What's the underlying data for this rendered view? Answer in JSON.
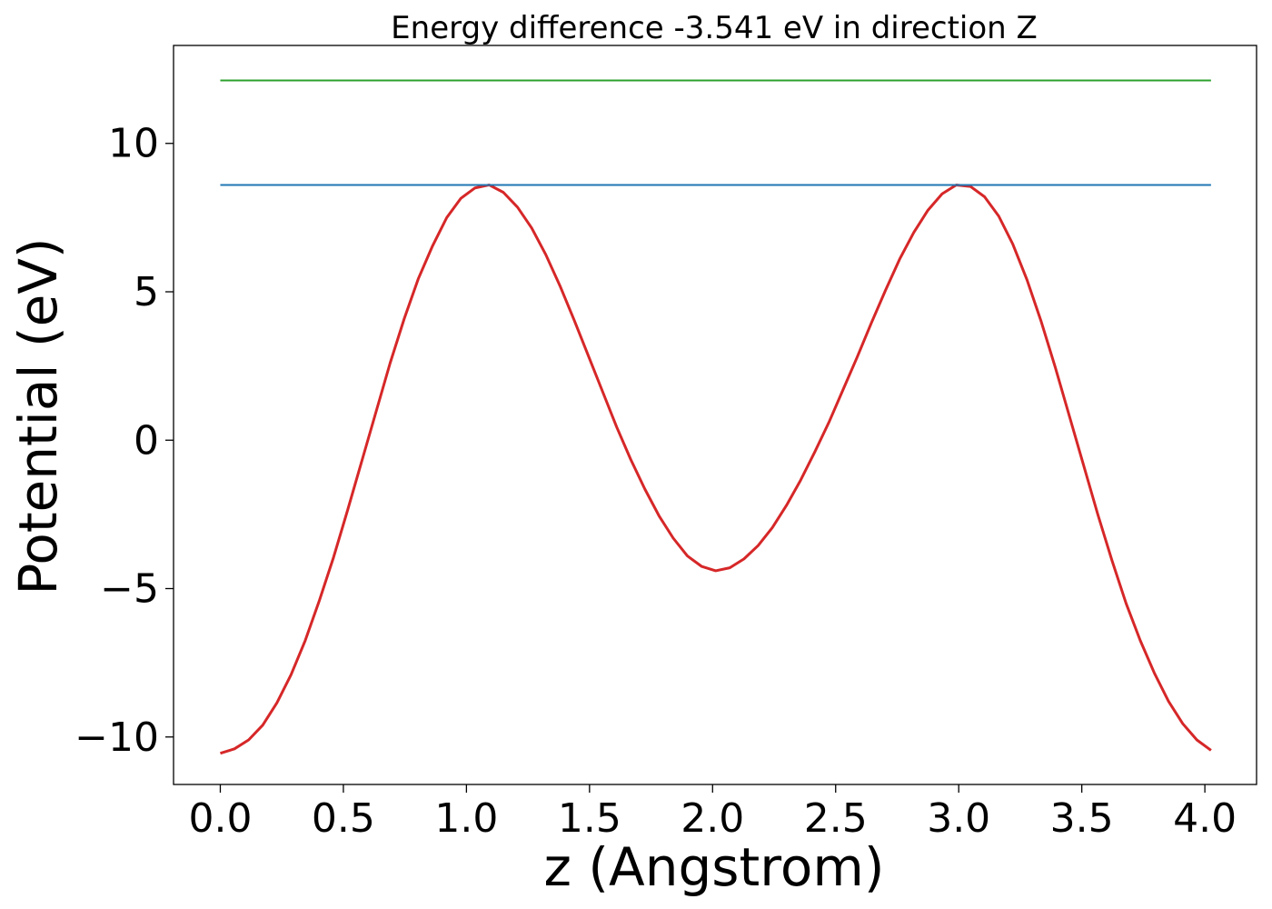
{
  "chart_data": {
    "type": "line",
    "title": "Energy difference -3.541 eV in direction Z",
    "xlabel": "z (Angstrom)",
    "ylabel": "Potential (eV)",
    "xlim": [
      -0.19,
      4.21
    ],
    "ylim": [
      -11.6,
      13.3
    ],
    "xticks": [
      0.0,
      0.5,
      1.0,
      1.5,
      2.0,
      2.5,
      3.0,
      3.5,
      4.0
    ],
    "xtick_labels": [
      "0.0",
      "0.5",
      "1.0",
      "1.5",
      "2.0",
      "2.5",
      "3.0",
      "3.5",
      "4.0"
    ],
    "yticks": [
      -10,
      -5,
      0,
      5,
      10
    ],
    "ytick_labels": [
      "−10",
      "−5",
      "0",
      "5",
      "10"
    ],
    "grid": false,
    "series": [
      {
        "color": "#d62728",
        "x": [
          0.0,
          0.0575,
          0.115,
          0.1725,
          0.23,
          0.2875,
          0.345,
          0.4025,
          0.46,
          0.5175,
          0.575,
          0.6325,
          0.69,
          0.7475,
          0.805,
          0.8625,
          0.92,
          0.9775,
          1.035,
          1.0925,
          1.15,
          1.2075,
          1.265,
          1.3225,
          1.38,
          1.4375,
          1.495,
          1.5525,
          1.61,
          1.6675,
          1.725,
          1.7825,
          1.84,
          1.8975,
          1.955,
          2.0125,
          2.07,
          2.1275,
          2.185,
          2.2425,
          2.3,
          2.3575,
          2.415,
          2.4725,
          2.53,
          2.5875,
          2.645,
          2.7025,
          2.76,
          2.8175,
          2.875,
          2.9325,
          2.99,
          3.0475,
          3.105,
          3.1625,
          3.22,
          3.2775,
          3.335,
          3.3925,
          3.45,
          3.5075,
          3.565,
          3.6225,
          3.68,
          3.7375,
          3.795,
          3.8525,
          3.91,
          3.9675,
          4.025
        ],
        "y": [
          -10.55,
          -10.4,
          -10.1,
          -9.6,
          -8.85,
          -7.9,
          -6.75,
          -5.4,
          -3.95,
          -2.35,
          -0.7,
          0.95,
          2.6,
          4.1,
          5.45,
          6.55,
          7.5,
          8.15,
          8.5,
          8.6,
          8.35,
          7.85,
          7.15,
          6.25,
          5.2,
          4.05,
          2.85,
          1.65,
          0.45,
          -0.65,
          -1.65,
          -2.55,
          -3.3,
          -3.9,
          -4.25,
          -4.4,
          -4.3,
          -4.0,
          -3.55,
          -2.95,
          -2.2,
          -1.35,
          -0.4,
          0.6,
          1.7,
          2.8,
          3.95,
          5.05,
          6.1,
          7.0,
          7.75,
          8.3,
          8.6,
          8.55,
          8.2,
          7.55,
          6.6,
          5.4,
          4.0,
          2.45,
          0.8,
          -0.85,
          -2.5,
          -4.05,
          -5.5,
          -6.75,
          -7.85,
          -8.8,
          -9.55,
          -10.1,
          -10.45
        ]
      },
      {
        "color": "#1f77b4",
        "x": [
          0.0,
          4.025
        ],
        "y": [
          8.6,
          8.6
        ]
      },
      {
        "color": "#2ca02c",
        "x": [
          0.0,
          4.025
        ],
        "y": [
          12.12,
          12.12
        ]
      }
    ]
  }
}
